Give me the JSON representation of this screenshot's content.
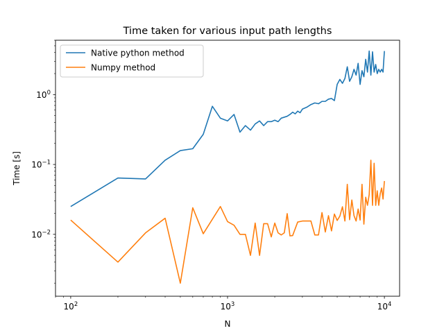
{
  "chart_data": {
    "type": "line",
    "title": "Time taken for various input path lengths",
    "xlabel": "N",
    "ylabel": "Time [s]",
    "xscale": "log",
    "yscale": "log",
    "xlim": [
      80,
      12500
    ],
    "ylim": [
      0.0013,
      6
    ],
    "grid": false,
    "legend_position": "top-left",
    "xticks": [
      {
        "value": 100,
        "base": "10",
        "exp": "2"
      },
      {
        "value": 1000,
        "base": "10",
        "exp": "3"
      },
      {
        "value": 10000,
        "base": "10",
        "exp": "4"
      }
    ],
    "yticks": [
      {
        "value": 0.01,
        "base": "10",
        "exp": "−2"
      },
      {
        "value": 0.1,
        "base": "10",
        "exp": "−1"
      },
      {
        "value": 1,
        "base": "10",
        "exp": "0"
      }
    ],
    "series": [
      {
        "name": "Native python method",
        "color": "#1f77b4",
        "points": [
          [
            100,
            0.025
          ],
          [
            200,
            0.064
          ],
          [
            300,
            0.062
          ],
          [
            400,
            0.115
          ],
          [
            500,
            0.158
          ],
          [
            600,
            0.168
          ],
          [
            700,
            0.27
          ],
          [
            800,
            0.68
          ],
          [
            900,
            0.46
          ],
          [
            1000,
            0.42
          ],
          [
            1100,
            0.52
          ],
          [
            1200,
            0.29
          ],
          [
            1300,
            0.36
          ],
          [
            1400,
            0.31
          ],
          [
            1500,
            0.38
          ],
          [
            1600,
            0.42
          ],
          [
            1700,
            0.36
          ],
          [
            1800,
            0.41
          ],
          [
            1900,
            0.41
          ],
          [
            2000,
            0.43
          ],
          [
            2100,
            0.41
          ],
          [
            2200,
            0.46
          ],
          [
            2400,
            0.49
          ],
          [
            2500,
            0.52
          ],
          [
            2600,
            0.56
          ],
          [
            2700,
            0.53
          ],
          [
            2800,
            0.58
          ],
          [
            2900,
            0.55
          ],
          [
            3000,
            0.62
          ],
          [
            3200,
            0.66
          ],
          [
            3400,
            0.72
          ],
          [
            3600,
            0.76
          ],
          [
            3800,
            0.74
          ],
          [
            4000,
            0.8
          ],
          [
            4200,
            0.8
          ],
          [
            4400,
            0.86
          ],
          [
            4600,
            0.88
          ],
          [
            4800,
            0.82
          ],
          [
            5000,
            1.4
          ],
          [
            5200,
            1.65
          ],
          [
            5400,
            1.45
          ],
          [
            5600,
            1.7
          ],
          [
            5800,
            2.5
          ],
          [
            6000,
            1.55
          ],
          [
            6200,
            1.8
          ],
          [
            6400,
            2.3
          ],
          [
            6600,
            1.9
          ],
          [
            6800,
            2.8
          ],
          [
            7000,
            1.4
          ],
          [
            7200,
            2.2
          ],
          [
            7400,
            1.8
          ],
          [
            7600,
            3.2
          ],
          [
            7800,
            2.1
          ],
          [
            8000,
            4.2
          ],
          [
            8200,
            1.9
          ],
          [
            8400,
            4.1
          ],
          [
            8600,
            2.1
          ],
          [
            8800,
            2.7
          ],
          [
            9000,
            2.0
          ],
          [
            9200,
            2.3
          ],
          [
            9400,
            2.1
          ],
          [
            9600,
            2.3
          ],
          [
            9800,
            2.1
          ],
          [
            10000,
            4.2
          ]
        ]
      },
      {
        "name": "Numpy method",
        "color": "#ff7f0e",
        "points": [
          [
            100,
            0.016
          ],
          [
            200,
            0.004
          ],
          [
            300,
            0.0105
          ],
          [
            400,
            0.017
          ],
          [
            500,
            0.002
          ],
          [
            600,
            0.024
          ],
          [
            700,
            0.0102
          ],
          [
            900,
            0.025
          ],
          [
            1000,
            0.0152
          ],
          [
            1100,
            0.0135
          ],
          [
            1200,
            0.01
          ],
          [
            1300,
            0.01
          ],
          [
            1400,
            0.005
          ],
          [
            1500,
            0.0145
          ],
          [
            1600,
            0.005
          ],
          [
            1700,
            0.0142
          ],
          [
            1800,
            0.0142
          ],
          [
            1900,
            0.0092
          ],
          [
            2000,
            0.0145
          ],
          [
            2100,
            0.0105
          ],
          [
            2200,
            0.0098
          ],
          [
            2300,
            0.0105
          ],
          [
            2400,
            0.0198
          ],
          [
            2500,
            0.0095
          ],
          [
            2600,
            0.0096
          ],
          [
            2800,
            0.015
          ],
          [
            3000,
            0.0155
          ],
          [
            3200,
            0.0155
          ],
          [
            3400,
            0.0155
          ],
          [
            3600,
            0.0098
          ],
          [
            3800,
            0.0098
          ],
          [
            4000,
            0.0205
          ],
          [
            4200,
            0.0108
          ],
          [
            4400,
            0.0185
          ],
          [
            4600,
            0.0112
          ],
          [
            4800,
            0.0195
          ],
          [
            5000,
            0.0158
          ],
          [
            5200,
            0.0182
          ],
          [
            5400,
            0.0248
          ],
          [
            5600,
            0.0155
          ],
          [
            5800,
            0.052
          ],
          [
            6000,
            0.0162
          ],
          [
            6200,
            0.031
          ],
          [
            6400,
            0.0185
          ],
          [
            6600,
            0.0155
          ],
          [
            6800,
            0.023
          ],
          [
            7000,
            0.016
          ],
          [
            7200,
            0.052
          ],
          [
            7400,
            0.014
          ],
          [
            7600,
            0.034
          ],
          [
            7800,
            0.026
          ],
          [
            8000,
            0.037
          ],
          [
            8200,
            0.115
          ],
          [
            8400,
            0.026
          ],
          [
            8600,
            0.104
          ],
          [
            8800,
            0.026
          ],
          [
            9000,
            0.042
          ],
          [
            9200,
            0.026
          ],
          [
            9400,
            0.038
          ],
          [
            9600,
            0.046
          ],
          [
            9800,
            0.032
          ],
          [
            10000,
            0.058
          ]
        ]
      }
    ]
  }
}
